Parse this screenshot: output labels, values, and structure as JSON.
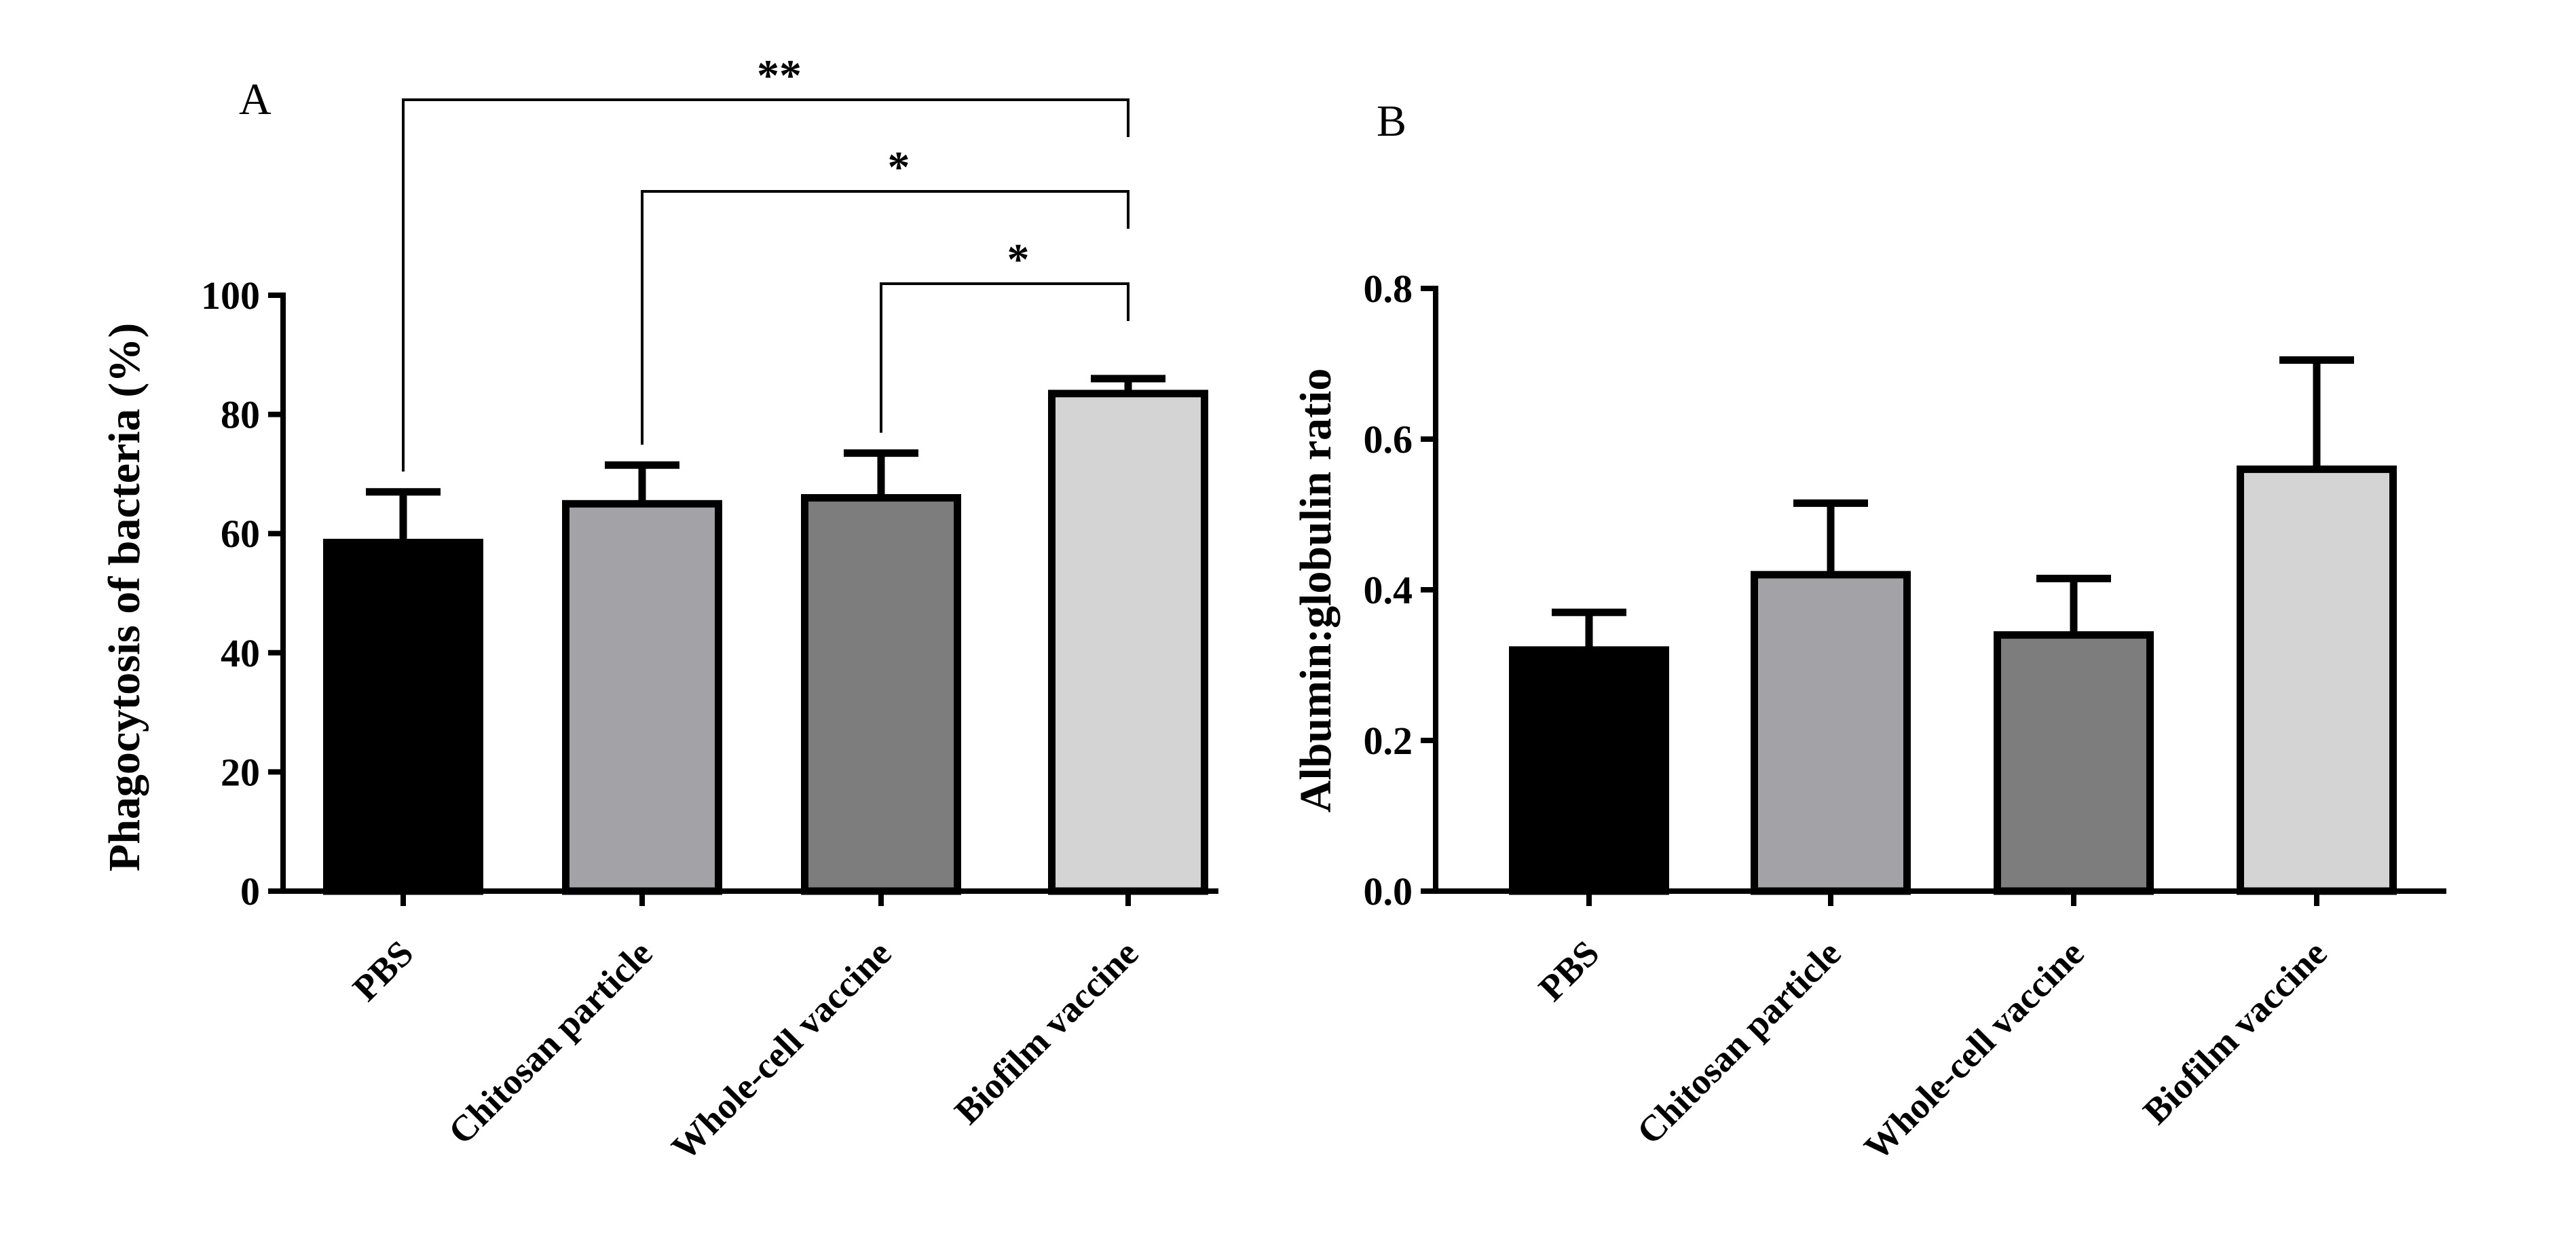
{
  "chart_data": [
    {
      "type": "bar",
      "panel": "A",
      "categories": [
        "PBS",
        "Chitosan particle",
        "Whole-cell vaccine",
        "Biofilm vaccine"
      ],
      "values": [
        58.5,
        65,
        66,
        83.5
      ],
      "errors": [
        8.5,
        6.5,
        7.5,
        2.5
      ],
      "bar_colors": [
        "#000000",
        "#a3a3a7",
        "#7d7d7d",
        "#d4d4d4"
      ],
      "ylabel": "Phagocytosis of bacteria (%)",
      "xlabel": "",
      "ylim": [
        0,
        100
      ],
      "yticks": [
        0,
        20,
        40,
        60,
        80,
        100
      ],
      "ytick_labels": [
        "0",
        "20",
        "40",
        "60",
        "80",
        "100"
      ],
      "significance": [
        {
          "from": 0,
          "to": 3,
          "label": "**"
        },
        {
          "from": 1,
          "to": 3,
          "label": "*"
        },
        {
          "from": 2,
          "to": 3,
          "label": "*"
        }
      ]
    },
    {
      "type": "bar",
      "panel": "B",
      "categories": [
        "PBS",
        "Chitosan particle",
        "Whole-cell vaccine",
        "Biofilm vaccine"
      ],
      "values": [
        0.32,
        0.42,
        0.34,
        0.56
      ],
      "errors": [
        0.05,
        0.095,
        0.075,
        0.145
      ],
      "bar_colors": [
        "#000000",
        "#a3a3a7",
        "#7d7d7d",
        "#d4d4d4"
      ],
      "ylabel": "Albumin:globulin ratio",
      "xlabel": "",
      "ylim": [
        0,
        0.8
      ],
      "yticks": [
        0,
        0.2,
        0.4,
        0.6,
        0.8
      ],
      "ytick_labels": [
        "0.0",
        "0.2",
        "0.4",
        "0.6",
        "0.8"
      ],
      "significance": []
    }
  ]
}
